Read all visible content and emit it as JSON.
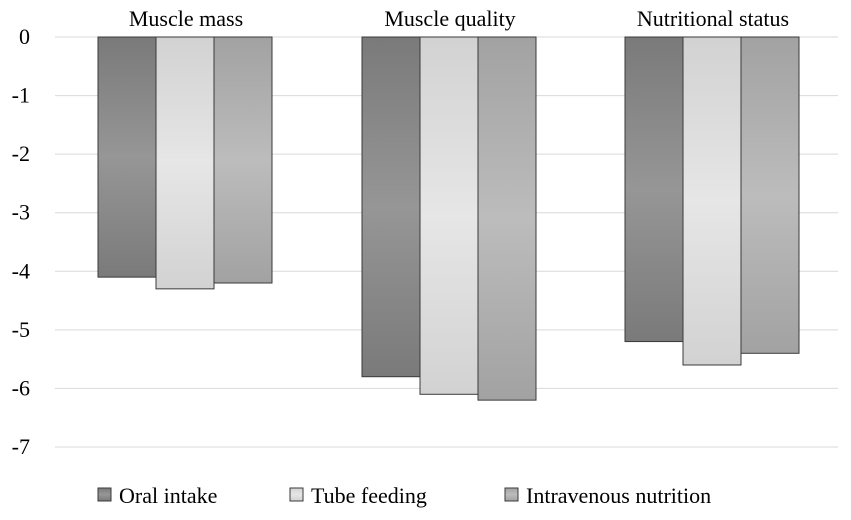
{
  "chart_data": {
    "type": "bar",
    "title": "",
    "xlabel": "",
    "ylabel": "",
    "categories": [
      "Muscle mass",
      "Muscle quality",
      "Nutritional status"
    ],
    "category_axis_position": "top",
    "ylim": [
      -7,
      0
    ],
    "yticks": [
      "0",
      "-1",
      "-2",
      "-3",
      "-4",
      "-5",
      "-6",
      "-7"
    ],
    "grid": true,
    "legend_position": "bottom",
    "series": [
      {
        "name": "Oral intake",
        "values": [
          -4.1,
          -5.8,
          -5.2
        ],
        "color": "#8c8c8c"
      },
      {
        "name": "Tube feeding",
        "values": [
          -4.3,
          -6.1,
          -5.6
        ],
        "color": "#dcdcdc"
      },
      {
        "name": "Intravenous nutrition",
        "values": [
          -4.2,
          -6.2,
          -5.4
        ],
        "color": "#b0b0b0"
      }
    ]
  }
}
